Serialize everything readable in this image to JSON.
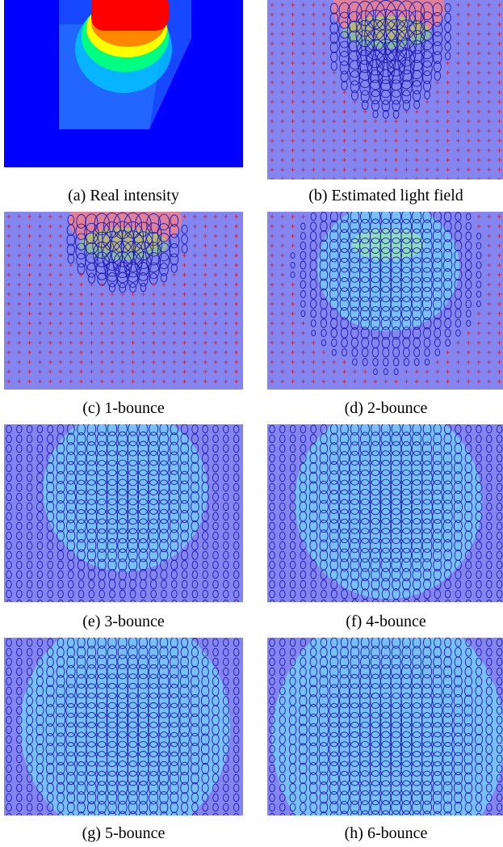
{
  "figure": {
    "panels": [
      {
        "id": "a",
        "caption": "(a) Real intensity",
        "kind": "intensity"
      },
      {
        "id": "b",
        "caption": "(b) Estimated light field",
        "kind": "field",
        "bounce": 0
      },
      {
        "id": "c",
        "caption": "(c) 1-bounce",
        "kind": "field",
        "bounce": 1
      },
      {
        "id": "d",
        "caption": "(d) 2-bounce",
        "kind": "field",
        "bounce": 2
      },
      {
        "id": "e",
        "caption": "(e) 3-bounce",
        "kind": "field",
        "bounce": 3
      },
      {
        "id": "f",
        "caption": "(f) 4-bounce",
        "kind": "field",
        "bounce": 4
      },
      {
        "id": "g",
        "caption": "(g) 5-bounce",
        "kind": "field",
        "bounce": 5
      },
      {
        "id": "h",
        "caption": "(h) 6-bounce",
        "kind": "field",
        "bounce": 6
      }
    ],
    "colors": {
      "background_field": "#8585f0",
      "intensity_background": "#0000ff",
      "ellipse_stroke": "#1a1ab0",
      "cross_marker": "#c81e3c",
      "hot": "#ff0000",
      "warm": "#ffff00",
      "mid": "#00ff80",
      "cool": "#00c8ff"
    }
  }
}
